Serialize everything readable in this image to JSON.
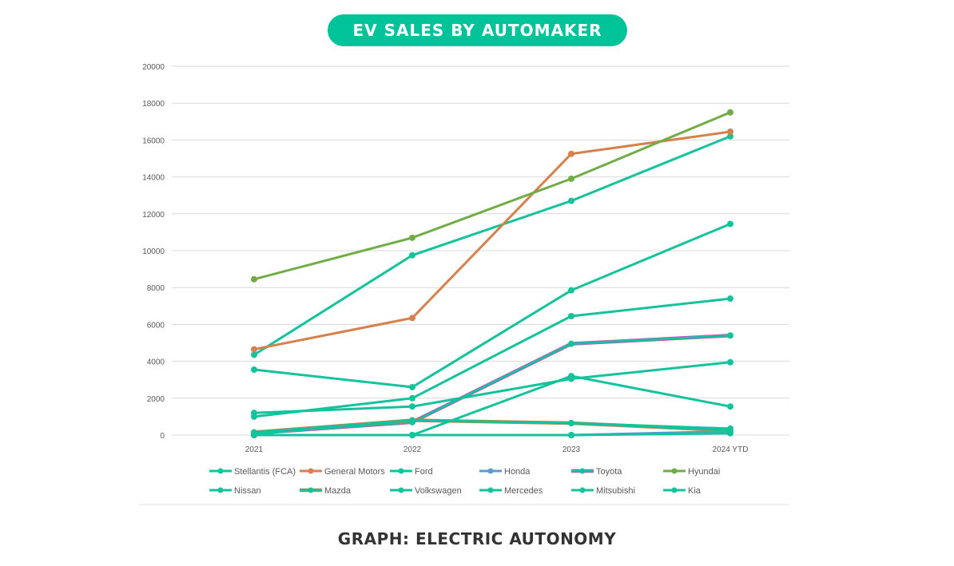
{
  "header": {
    "title": "EV SALES BY AUTOMAKER"
  },
  "caption": "GRAPH: ELECTRIC AUTONOMY",
  "chart_data": {
    "type": "line",
    "title": "",
    "x": [
      "2021",
      "2022",
      "2023",
      "2024 YTD"
    ],
    "ylim": [
      0,
      20000
    ],
    "yticks": [
      0,
      2000,
      4000,
      6000,
      8000,
      10000,
      12000,
      14000,
      16000,
      18000,
      20000
    ],
    "grid": true,
    "legend": "bottom",
    "series": [
      {
        "name": "Stellantis (FCA)",
        "color": "#14c29c",
        "values": [
          4350,
          9750,
          12700,
          16200
        ]
      },
      {
        "name": "General Motors",
        "color": "#d6804b",
        "values": [
          4650,
          6350,
          15250,
          16450
        ]
      },
      {
        "name": "Ford",
        "color": "#14c29c",
        "values": [
          3550,
          2600,
          7850,
          11450
        ]
      },
      {
        "name": "Honda",
        "color": "#5b9bd5",
        "values": [
          0,
          0,
          0,
          200
        ]
      },
      {
        "name": "Toyota",
        "color": "#14c29c",
        "edge": "#e040c8",
        "values": [
          100,
          700,
          4950,
          5400
        ]
      },
      {
        "name": "Hyundai",
        "color": "#70ad47",
        "values": [
          8450,
          10700,
          13900,
          17500
        ]
      },
      {
        "name": "Nissan",
        "color": "#14c29c",
        "values": [
          1200,
          1550,
          3050,
          3950
        ]
      },
      {
        "name": "Mazda",
        "color": "#14c29c",
        "edge": "#d6804b",
        "values": [
          150,
          800,
          650,
          250
        ]
      },
      {
        "name": "Volkswagen",
        "color": "#14c29c",
        "values": [
          1000,
          2000,
          6450,
          7400
        ]
      },
      {
        "name": "Mercedes",
        "color": "#14c29c",
        "values": [
          0,
          0,
          3200,
          1550
        ]
      },
      {
        "name": "Mitsubishi",
        "color": "#14c29c",
        "values": [
          0,
          0,
          0,
          100
        ]
      },
      {
        "name": "Kia",
        "color": "#14c29c",
        "values": [
          50,
          800,
          650,
          350
        ]
      }
    ]
  }
}
